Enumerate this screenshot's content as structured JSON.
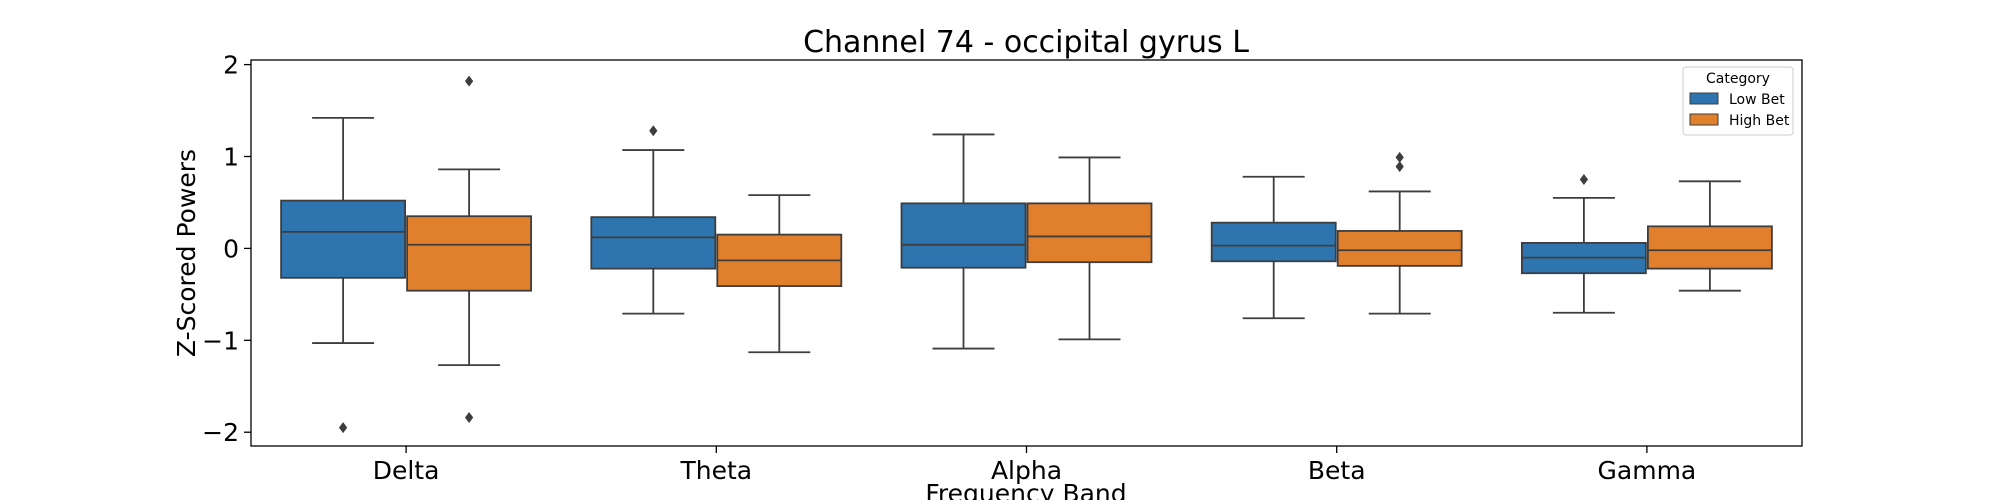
{
  "chart_data": {
    "type": "box",
    "title": "Channel 74 - occipital gyrus L",
    "xlabel": "Frequency Band",
    "ylabel": "Z-Scored Powers",
    "ylim": [
      -2.15,
      2.05
    ],
    "yticks": [
      2,
      1,
      0,
      -1,
      -2
    ],
    "ytick_labels": [
      "2",
      "1",
      "0",
      "−1",
      "−2"
    ],
    "categories": [
      "Delta",
      "Theta",
      "Alpha",
      "Beta",
      "Gamma"
    ],
    "grid": false,
    "legend": {
      "title": "Category",
      "position": "top-right"
    },
    "series": [
      {
        "name": "Low Bet",
        "color": "#2e75b0",
        "boxes": [
          {
            "whisker_low": -1.03,
            "q1": -0.32,
            "median": 0.18,
            "q3": 0.52,
            "whisker_high": 1.42,
            "outliers": [
              -1.95
            ]
          },
          {
            "whisker_low": -0.71,
            "q1": -0.22,
            "median": 0.12,
            "q3": 0.34,
            "whisker_high": 1.07,
            "outliers": [
              1.28
            ]
          },
          {
            "whisker_low": -1.09,
            "q1": -0.21,
            "median": 0.04,
            "q3": 0.49,
            "whisker_high": 1.24,
            "outliers": []
          },
          {
            "whisker_low": -0.76,
            "q1": -0.14,
            "median": 0.03,
            "q3": 0.28,
            "whisker_high": 0.78,
            "outliers": []
          },
          {
            "whisker_low": -0.7,
            "q1": -0.27,
            "median": -0.1,
            "q3": 0.06,
            "whisker_high": 0.55,
            "outliers": [
              0.75
            ]
          }
        ]
      },
      {
        "name": "High Bet",
        "color": "#e07f2c",
        "boxes": [
          {
            "whisker_low": -1.27,
            "q1": -0.46,
            "median": 0.04,
            "q3": 0.35,
            "whisker_high": 0.86,
            "outliers": [
              1.82,
              -1.84
            ]
          },
          {
            "whisker_low": -1.13,
            "q1": -0.41,
            "median": -0.13,
            "q3": 0.15,
            "whisker_high": 0.58,
            "outliers": []
          },
          {
            "whisker_low": -0.99,
            "q1": -0.15,
            "median": 0.13,
            "q3": 0.49,
            "whisker_high": 0.99,
            "outliers": []
          },
          {
            "whisker_low": -0.71,
            "q1": -0.19,
            "median": -0.02,
            "q3": 0.19,
            "whisker_high": 0.62,
            "outliers": [
              0.99,
              0.89
            ]
          },
          {
            "whisker_low": -0.46,
            "q1": -0.22,
            "median": -0.02,
            "q3": 0.24,
            "whisker_high": 0.73,
            "outliers": []
          }
        ]
      }
    ]
  }
}
